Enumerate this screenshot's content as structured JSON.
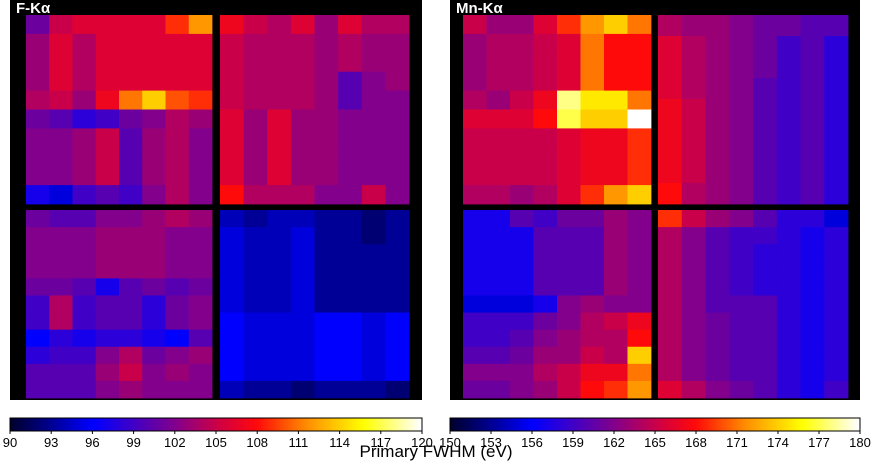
{
  "xlabel": "Primary FWHM (eV)",
  "chart_data": [
    {
      "type": "heatmap",
      "title": "F-Kα",
      "colormap": "black-blue-purple-red-orange-yellow-white",
      "colorbar": {
        "min": 90,
        "max": 120,
        "ticks": [
          "90",
          "93",
          "96",
          "99",
          "102",
          "105",
          "108",
          "111",
          "114",
          "117",
          "120"
        ]
      },
      "quadrants": {
        "top_left": [
          [
            101,
            105,
            106,
            106,
            106,
            106,
            109,
            112
          ],
          [
            103,
            106,
            104,
            106,
            106,
            106,
            106,
            106
          ],
          [
            103,
            106,
            104,
            106,
            106,
            106,
            106,
            106
          ],
          [
            103,
            106,
            104,
            106,
            106,
            106,
            106,
            106
          ],
          [
            104,
            105,
            103,
            107,
            111,
            114,
            110,
            109
          ],
          [
            101,
            100,
            98,
            99,
            101,
            102,
            104,
            103
          ],
          [
            102,
            102,
            103,
            105,
            100,
            103,
            104,
            102
          ],
          [
            102,
            102,
            103,
            105,
            100,
            103,
            104,
            102
          ],
          [
            102,
            102,
            103,
            105,
            100,
            103,
            104,
            102
          ],
          [
            97,
            95,
            99,
            100,
            99,
            102,
            104,
            102
          ]
        ],
        "top_right": [
          [
            107,
            105,
            104,
            106,
            103,
            106,
            104,
            104
          ],
          [
            105,
            104,
            104,
            104,
            103,
            104,
            103,
            103
          ],
          [
            105,
            104,
            104,
            104,
            103,
            104,
            103,
            103
          ],
          [
            105,
            104,
            104,
            104,
            103,
            100,
            102,
            103
          ],
          [
            105,
            104,
            104,
            104,
            103,
            100,
            102,
            102
          ],
          [
            106,
            103,
            106,
            103,
            103,
            102,
            102,
            102
          ],
          [
            106,
            103,
            106,
            103,
            103,
            102,
            102,
            102
          ],
          [
            106,
            103,
            106,
            103,
            103,
            102,
            102,
            102
          ],
          [
            106,
            103,
            106,
            103,
            103,
            102,
            102,
            102
          ],
          [
            108,
            104,
            104,
            104,
            102,
            102,
            105,
            102
          ]
        ],
        "bottom_left": [
          [
            101,
            100,
            100,
            102,
            102,
            103,
            104,
            103
          ],
          [
            102,
            102,
            102,
            103,
            103,
            103,
            102,
            102
          ],
          [
            102,
            102,
            102,
            103,
            103,
            103,
            102,
            102
          ],
          [
            102,
            102,
            102,
            103,
            103,
            103,
            102,
            102
          ],
          [
            101,
            101,
            100,
            97,
            100,
            101,
            100,
            101
          ],
          [
            99,
            104,
            99,
            100,
            100,
            98,
            101,
            102
          ],
          [
            99,
            104,
            99,
            100,
            100,
            98,
            101,
            102
          ],
          [
            96,
            98,
            97,
            98,
            98,
            97,
            96,
            100
          ],
          [
            98,
            99,
            99,
            102,
            104,
            101,
            102,
            103
          ],
          [
            100,
            100,
            100,
            103,
            105,
            102,
            103,
            102
          ],
          [
            100,
            100,
            100,
            102,
            103,
            102,
            102,
            102
          ]
        ],
        "bottom_right": [
          [
            94,
            93,
            94,
            94,
            93,
            93,
            92,
            93
          ],
          [
            95,
            94,
            94,
            95,
            93,
            93,
            92,
            93
          ],
          [
            95,
            94,
            94,
            95,
            93,
            93,
            93,
            93
          ],
          [
            95,
            94,
            94,
            95,
            93,
            93,
            93,
            93
          ],
          [
            95,
            94,
            94,
            95,
            93,
            93,
            93,
            93
          ],
          [
            95,
            94,
            94,
            95,
            93,
            93,
            93,
            93
          ],
          [
            96,
            95,
            95,
            95,
            96,
            96,
            95,
            96
          ],
          [
            96,
            95,
            95,
            95,
            96,
            96,
            95,
            96
          ],
          [
            96,
            95,
            95,
            95,
            96,
            96,
            95,
            96
          ],
          [
            96,
            95,
            95,
            95,
            96,
            96,
            95,
            96
          ],
          [
            94,
            93,
            93,
            92,
            93,
            93,
            93,
            92
          ]
        ]
      }
    },
    {
      "type": "heatmap",
      "title": "Mn-Kα",
      "colormap": "black-blue-purple-red-orange-yellow-white",
      "colorbar": {
        "min": 150,
        "max": 180,
        "ticks": [
          "150",
          "153",
          "156",
          "159",
          "162",
          "165",
          "168",
          "171",
          "174",
          "177",
          "180"
        ]
      },
      "quadrants": {
        "top_left": [
          [
            165,
            163,
            163,
            166,
            169,
            172,
            174,
            171
          ],
          [
            163,
            164,
            164,
            165,
            166,
            171,
            168,
            168
          ],
          [
            163,
            164,
            164,
            165,
            166,
            171,
            168,
            168
          ],
          [
            163,
            164,
            164,
            165,
            166,
            171,
            168,
            168
          ],
          [
            164,
            163,
            165,
            167,
            178,
            175,
            175,
            171
          ],
          [
            166,
            166,
            166,
            168,
            177,
            174,
            174,
            180
          ],
          [
            165,
            165,
            165,
            165,
            166,
            167,
            167,
            169
          ],
          [
            165,
            165,
            165,
            165,
            166,
            167,
            167,
            169
          ],
          [
            165,
            165,
            165,
            165,
            166,
            167,
            167,
            169
          ],
          [
            164,
            164,
            163,
            164,
            166,
            169,
            172,
            174
          ]
        ],
        "top_right": [
          [
            164,
            163,
            163,
            162,
            161,
            161,
            160,
            160
          ],
          [
            166,
            164,
            163,
            162,
            161,
            159,
            160,
            158
          ],
          [
            166,
            164,
            163,
            162,
            161,
            159,
            160,
            158
          ],
          [
            166,
            164,
            163,
            162,
            160,
            159,
            160,
            158
          ],
          [
            167,
            165,
            163,
            162,
            160,
            159,
            160,
            158
          ],
          [
            167,
            165,
            163,
            162,
            160,
            159,
            160,
            158
          ],
          [
            167,
            165,
            163,
            162,
            160,
            159,
            160,
            158
          ],
          [
            167,
            165,
            163,
            162,
            160,
            159,
            160,
            158
          ],
          [
            168,
            164,
            163,
            162,
            160,
            159,
            160,
            158
          ]
        ],
        "bottom_left": [
          [
            157,
            157,
            160,
            159,
            161,
            161,
            163,
            162
          ],
          [
            157,
            157,
            157,
            160,
            160,
            160,
            163,
            162
          ],
          [
            157,
            157,
            157,
            160,
            160,
            160,
            163,
            162
          ],
          [
            157,
            157,
            157,
            160,
            160,
            160,
            163,
            162
          ],
          [
            157,
            157,
            157,
            160,
            160,
            160,
            163,
            162
          ],
          [
            155,
            155,
            155,
            157,
            162,
            163,
            162,
            162
          ],
          [
            159,
            159,
            159,
            161,
            162,
            164,
            165,
            167
          ],
          [
            159,
            159,
            160,
            162,
            163,
            164,
            164,
            168
          ],
          [
            160,
            160,
            161,
            163,
            163,
            165,
            164,
            174
          ],
          [
            162,
            162,
            162,
            164,
            165,
            167,
            167,
            171
          ],
          [
            161,
            161,
            162,
            163,
            165,
            168,
            169,
            172
          ]
        ],
        "bottom_right": [
          [
            169,
            165,
            163,
            162,
            160,
            158,
            158,
            155
          ],
          [
            164,
            162,
            160,
            159,
            159,
            158,
            157,
            158
          ],
          [
            164,
            162,
            160,
            159,
            158,
            158,
            157,
            158
          ],
          [
            164,
            162,
            160,
            159,
            158,
            158,
            157,
            158
          ],
          [
            164,
            162,
            160,
            159,
            158,
            158,
            157,
            158
          ],
          [
            164,
            162,
            160,
            160,
            160,
            158,
            157,
            158
          ],
          [
            164,
            162,
            161,
            160,
            160,
            158,
            157,
            158
          ],
          [
            164,
            162,
            161,
            160,
            160,
            158,
            157,
            158
          ],
          [
            164,
            162,
            161,
            160,
            160,
            158,
            157,
            158
          ],
          [
            164,
            162,
            161,
            160,
            160,
            158,
            157,
            158
          ],
          [
            166,
            164,
            162,
            161,
            160,
            158,
            157,
            159
          ]
        ]
      }
    }
  ]
}
